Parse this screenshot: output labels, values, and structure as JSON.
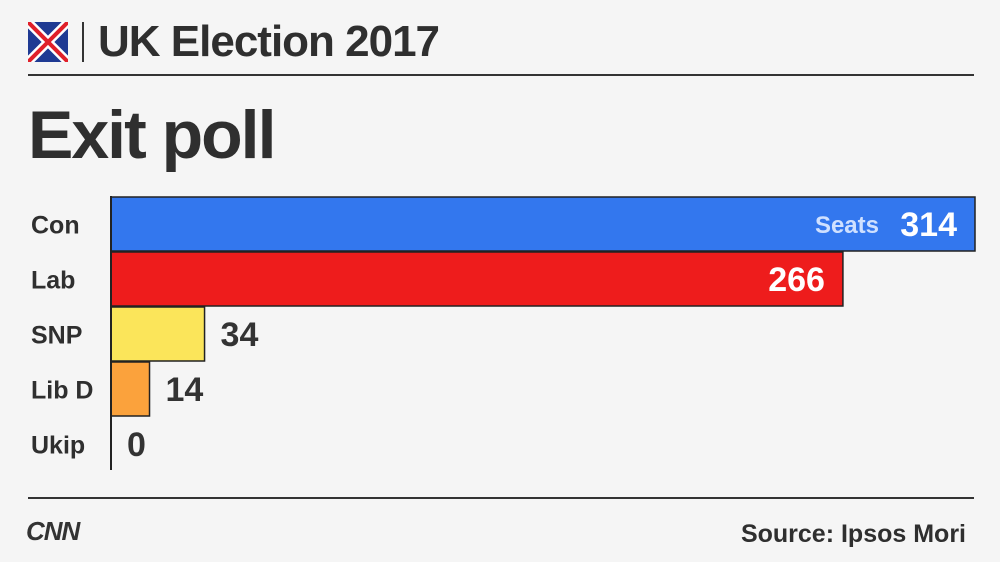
{
  "header": {
    "title": "UK Election 2017"
  },
  "chart_data": {
    "type": "bar",
    "orientation": "horizontal",
    "title": "Exit poll",
    "categories": [
      "Con",
      "Lab",
      "SNP",
      "Lib D",
      "Ukip"
    ],
    "values": [
      314,
      266,
      34,
      14,
      0
    ],
    "value_prefix_label": "Seats",
    "colors": [
      "#3377ee",
      "#ee1c1c",
      "#fbe55a",
      "#fba23c",
      "#f5f5f5"
    ],
    "xlim": [
      0,
      314
    ],
    "grid": false,
    "legend": "none"
  },
  "footer": {
    "logo": "CNN",
    "source": "Source: Ipsos Mori"
  }
}
